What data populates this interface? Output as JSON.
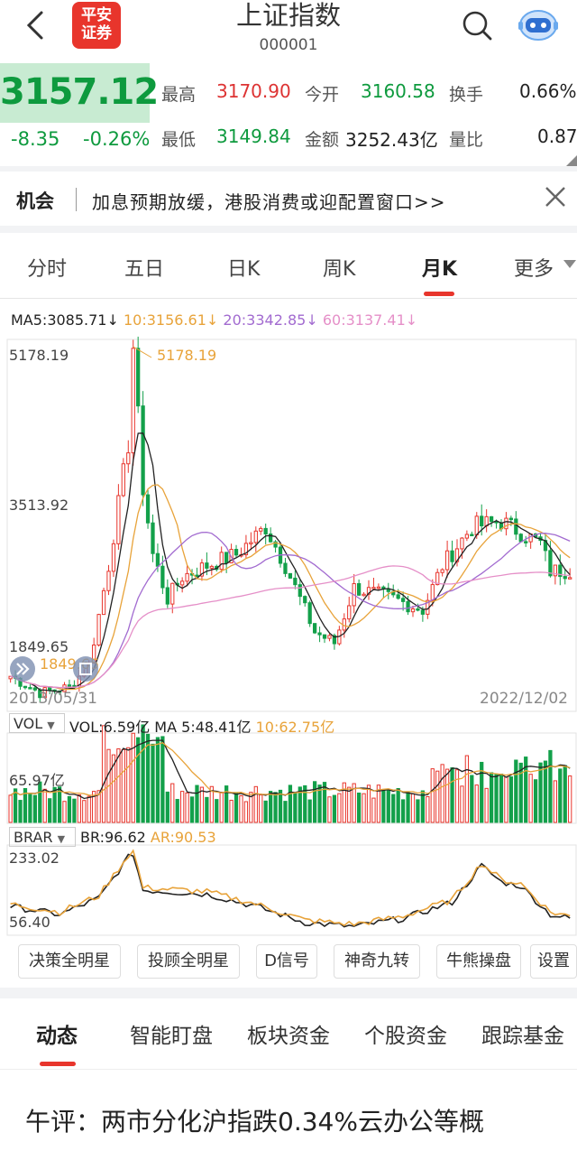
{
  "header": {
    "title": "上证指数",
    "code": "000001",
    "logo_line1": "平安",
    "logo_line2": "证券",
    "icons": [
      "back-arrow-icon",
      "search-icon",
      "robot-assistant-icon"
    ]
  },
  "quote": {
    "price": "3157.12",
    "change": "-8.35",
    "change_pct": "-0.26%",
    "high_label": "最高",
    "high": "3170.90",
    "open_label": "今开",
    "open": "3160.58",
    "turnover_label": "换手",
    "turnover": "0.66%",
    "low_label": "最低",
    "low": "3149.84",
    "amount_label": "金额",
    "amount": "3252.43亿",
    "ratio_label": "量比",
    "ratio": "0.87"
  },
  "news": {
    "tag": "机会",
    "text": "加息预期放缓，港股消费或迎配置窗口>>"
  },
  "period_tabs": [
    "分时",
    "五日",
    "日K",
    "周K",
    "月K",
    "更多"
  ],
  "active_period": "月K",
  "chart": {
    "ma_legend": [
      {
        "text": "MA5:3085.71↓",
        "color": "#222222"
      },
      {
        "text": "10:3156.61↓",
        "color": "#e8a33a"
      },
      {
        "text": "20:3342.85↓",
        "color": "#a26bd0"
      },
      {
        "text": "60:3137.41↓",
        "color": "#e58fc8"
      }
    ],
    "y_top": "5178.19",
    "y_mid": "3513.92",
    "y_low": "1849.65",
    "peak_label": "5178.19",
    "trough_label": "1849.65",
    "date_start": "2013/05/31",
    "date_end": "2022/12/02",
    "vol_selector": "VOL",
    "vol_legend": [
      {
        "text": "VOL:6.59亿",
        "color": "#222222"
      },
      {
        "text": "MA 5:48.41亿",
        "color": "#222222"
      },
      {
        "text": "10:62.75亿",
        "color": "#e8a33a"
      }
    ],
    "vol_axis": "65.97亿",
    "brar_selector": "BRAR",
    "brar_legend": [
      {
        "text": "BR:96.62",
        "color": "#222222"
      },
      {
        "text": "AR:90.53",
        "color": "#e8a33a"
      }
    ],
    "brar_top": "233.02",
    "brar_low": "56.40"
  },
  "tool_buttons": [
    "决策全明星",
    "投顾全明星",
    "D信号",
    "神奇九转",
    "牛熊操盘",
    "设置"
  ],
  "bottom_tabs": [
    "动态",
    "智能盯盘",
    "板块资金",
    "个股资金",
    "跟踪基金"
  ],
  "active_bottom_tab": "动态",
  "article_title": "午评：两市分化沪指跌0.34%云办公等概",
  "colors": {
    "up": "#e8352c",
    "down": "#13a04a",
    "accent": "#e8352c"
  }
}
